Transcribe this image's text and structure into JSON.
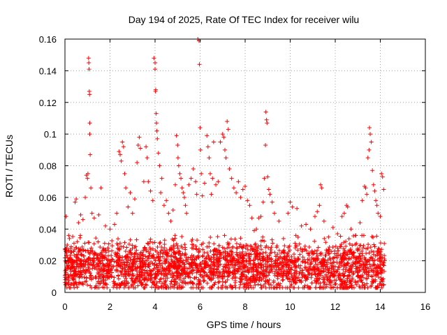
{
  "chart_data": {
    "type": "scatter",
    "title": "Day 194 of 2025, Rate Of TEC Index for receiver wilu",
    "xlabel": "GPS time / hours",
    "ylabel": "ROTI / TECUs",
    "xlim": [
      0,
      16
    ],
    "ylim": [
      0,
      0.16
    ],
    "xticks": [
      "0",
      "2",
      "4",
      "6",
      "8",
      "10",
      "12",
      "14",
      "16"
    ],
    "yticks": [
      "0",
      "0.02",
      "0.04",
      "0.06",
      "0.08",
      "0.1",
      "0.12",
      "0.14",
      "0.16"
    ],
    "grid": true,
    "marker": "plus",
    "color": "#ff0000",
    "series": [
      {
        "name": "ROTI",
        "points": [
          [
            0.05,
            0.048
          ],
          [
            0.1,
            0.03
          ],
          [
            0.2,
            0.034
          ],
          [
            0.3,
            0.02
          ],
          [
            0.45,
            0.057
          ],
          [
            0.5,
            0.059
          ],
          [
            0.6,
            0.044
          ],
          [
            0.7,
            0.049
          ],
          [
            0.8,
            0.046
          ],
          [
            0.9,
            0.06
          ],
          [
            0.95,
            0.074
          ],
          [
            1.0,
            0.072
          ],
          [
            1.02,
            0.075
          ],
          [
            1.05,
            0.148
          ],
          [
            1.06,
            0.145
          ],
          [
            1.07,
            0.141
          ],
          [
            1.08,
            0.127
          ],
          [
            1.09,
            0.125
          ],
          [
            1.1,
            0.107
          ],
          [
            1.1,
            0.1
          ],
          [
            1.12,
            0.087
          ],
          [
            1.15,
            0.066
          ],
          [
            1.2,
            0.05
          ],
          [
            1.3,
            0.047
          ],
          [
            1.5,
            0.049
          ],
          [
            1.6,
            0.066
          ],
          [
            1.8,
            0.042
          ],
          [
            2.0,
            0.04
          ],
          [
            2.2,
            0.043
          ],
          [
            2.3,
            0.05
          ],
          [
            2.4,
            0.089
          ],
          [
            2.45,
            0.087
          ],
          [
            2.5,
            0.083
          ],
          [
            2.55,
            0.095
          ],
          [
            2.6,
            0.092
          ],
          [
            2.65,
            0.075
          ],
          [
            2.7,
            0.066
          ],
          [
            2.8,
            0.054
          ],
          [
            2.9,
            0.063
          ],
          [
            3.0,
            0.05
          ],
          [
            3.1,
            0.059
          ],
          [
            3.2,
            0.082
          ],
          [
            3.25,
            0.093
          ],
          [
            3.3,
            0.098
          ],
          [
            3.35,
            0.091
          ],
          [
            3.5,
            0.07
          ],
          [
            3.6,
            0.092
          ],
          [
            3.65,
            0.085
          ],
          [
            3.7,
            0.07
          ],
          [
            3.8,
            0.064
          ],
          [
            3.9,
            0.058
          ],
          [
            3.95,
            0.148
          ],
          [
            4.0,
            0.145
          ],
          [
            4.0,
            0.141
          ],
          [
            4.02,
            0.127
          ],
          [
            4.03,
            0.128
          ],
          [
            4.05,
            0.113
          ],
          [
            4.06,
            0.107
          ],
          [
            4.08,
            0.102
          ],
          [
            4.1,
            0.097
          ],
          [
            4.15,
            0.088
          ],
          [
            4.2,
            0.08
          ],
          [
            4.25,
            0.063
          ],
          [
            4.3,
            0.072
          ],
          [
            4.4,
            0.055
          ],
          [
            4.5,
            0.058
          ],
          [
            4.6,
            0.05
          ],
          [
            4.7,
            0.045
          ],
          [
            4.8,
            0.052
          ],
          [
            4.9,
            0.068
          ],
          [
            4.95,
            0.099
          ],
          [
            5.0,
            0.093
          ],
          [
            5.02,
            0.085
          ],
          [
            5.05,
            0.08
          ],
          [
            5.1,
            0.075
          ],
          [
            5.15,
            0.072
          ],
          [
            5.2,
            0.066
          ],
          [
            5.25,
            0.063
          ],
          [
            5.3,
            0.06
          ],
          [
            5.35,
            0.055
          ],
          [
            5.4,
            0.05
          ],
          [
            5.5,
            0.068
          ],
          [
            5.6,
            0.072
          ],
          [
            5.7,
            0.078
          ],
          [
            5.8,
            0.07
          ],
          [
            5.85,
            0.062
          ],
          [
            5.9,
            0.16
          ],
          [
            5.95,
            0.159
          ],
          [
            5.97,
            0.144
          ],
          [
            6.0,
            0.104
          ],
          [
            6.02,
            0.09
          ],
          [
            6.05,
            0.075
          ],
          [
            6.1,
            0.061
          ],
          [
            6.2,
            0.069
          ],
          [
            6.3,
            0.099
          ],
          [
            6.35,
            0.092
          ],
          [
            6.4,
            0.085
          ],
          [
            6.45,
            0.075
          ],
          [
            6.5,
            0.062
          ],
          [
            6.55,
            0.072
          ],
          [
            6.6,
            0.095
          ],
          [
            6.7,
            0.068
          ],
          [
            6.8,
            0.07
          ],
          [
            6.9,
            0.095
          ],
          [
            7.0,
            0.1
          ],
          [
            7.05,
            0.098
          ],
          [
            7.1,
            0.09
          ],
          [
            7.15,
            0.085
          ],
          [
            7.2,
            0.108
          ],
          [
            7.25,
            0.103
          ],
          [
            7.3,
            0.078
          ],
          [
            7.4,
            0.072
          ],
          [
            7.5,
            0.066
          ],
          [
            7.6,
            0.063
          ],
          [
            7.7,
            0.07
          ],
          [
            7.8,
            0.06
          ],
          [
            7.9,
            0.065
          ],
          [
            8.0,
            0.067
          ],
          [
            8.1,
            0.058
          ],
          [
            8.2,
            0.055
          ],
          [
            8.3,
            0.047
          ],
          [
            8.4,
            0.039
          ],
          [
            8.5,
            0.04
          ],
          [
            8.6,
            0.047
          ],
          [
            8.7,
            0.048
          ],
          [
            8.8,
            0.057
          ],
          [
            8.85,
            0.072
          ],
          [
            8.9,
            0.093
          ],
          [
            8.92,
            0.114
          ],
          [
            8.95,
            0.109
          ],
          [
            8.97,
            0.107
          ],
          [
            9.0,
            0.073
          ],
          [
            9.05,
            0.065
          ],
          [
            9.1,
            0.062
          ],
          [
            9.2,
            0.057
          ],
          [
            9.3,
            0.05
          ],
          [
            9.5,
            0.045
          ],
          [
            9.7,
            0.034
          ],
          [
            9.9,
            0.05
          ],
          [
            10.0,
            0.057
          ],
          [
            10.1,
            0.054
          ],
          [
            10.3,
            0.053
          ],
          [
            10.5,
            0.042
          ],
          [
            10.7,
            0.043
          ],
          [
            10.9,
            0.04
          ],
          [
            11.1,
            0.048
          ],
          [
            11.2,
            0.051
          ],
          [
            11.3,
            0.055
          ],
          [
            11.35,
            0.068
          ],
          [
            11.4,
            0.066
          ],
          [
            11.5,
            0.045
          ],
          [
            11.7,
            0.035
          ],
          [
            11.9,
            0.041
          ],
          [
            12.1,
            0.037
          ],
          [
            12.3,
            0.048
          ],
          [
            12.4,
            0.05
          ],
          [
            12.5,
            0.055
          ],
          [
            12.55,
            0.054
          ],
          [
            12.7,
            0.04
          ],
          [
            12.9,
            0.036
          ],
          [
            13.1,
            0.044
          ],
          [
            13.2,
            0.058
          ],
          [
            13.3,
            0.067
          ],
          [
            13.35,
            0.066
          ],
          [
            13.4,
            0.062
          ],
          [
            13.45,
            0.085
          ],
          [
            13.5,
            0.09
          ],
          [
            13.52,
            0.104
          ],
          [
            13.55,
            0.1
          ],
          [
            13.6,
            0.095
          ],
          [
            13.65,
            0.077
          ],
          [
            13.7,
            0.068
          ],
          [
            13.75,
            0.064
          ],
          [
            13.8,
            0.058
          ],
          [
            13.85,
            0.055
          ],
          [
            13.9,
            0.05
          ],
          [
            14.0,
            0.048
          ],
          [
            14.05,
            0.075
          ],
          [
            14.1,
            0.073
          ],
          [
            14.15,
            0.065
          ]
        ],
        "noise_band": {
          "x_range": [
            0,
            14.2
          ],
          "y_range": [
            0.003,
            0.036
          ],
          "typical": 0.016,
          "count": 2600
        }
      }
    ]
  }
}
